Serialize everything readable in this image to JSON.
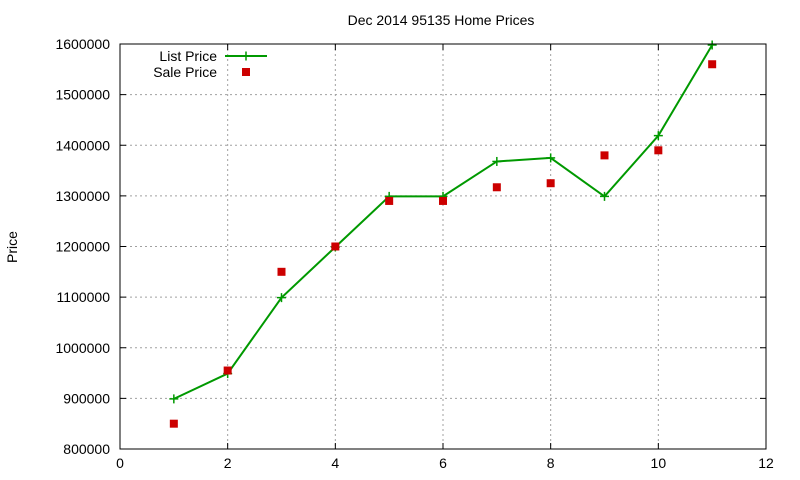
{
  "chart_data": {
    "type": "line",
    "title": "Dec 2014 95135 Home Prices",
    "xlabel": "",
    "ylabel": "Price",
    "xlim": [
      0,
      12
    ],
    "ylim": [
      800000,
      1600000
    ],
    "xticks": [
      0,
      2,
      4,
      6,
      8,
      10,
      12
    ],
    "yticks": [
      800000,
      900000,
      1000000,
      1100000,
      1200000,
      1300000,
      1400000,
      1500000,
      1600000
    ],
    "grid": true,
    "legend_position": "top-left",
    "series": [
      {
        "name": "List Price",
        "style": "line-with-plus-markers",
        "color": "#009900",
        "x": [
          1,
          2,
          3,
          4,
          5,
          6,
          7,
          8,
          9,
          10,
          11
        ],
        "y": [
          899000,
          949000,
          1099000,
          1199000,
          1299000,
          1299000,
          1368000,
          1375000,
          1299000,
          1419000,
          1598000
        ]
      },
      {
        "name": "Sale Price",
        "style": "square-markers",
        "color": "#cc0000",
        "x": [
          1,
          2,
          3,
          4,
          5,
          6,
          7,
          8,
          9,
          10,
          11
        ],
        "y": [
          850000,
          955000,
          1150000,
          1200000,
          1290000,
          1290000,
          1317000,
          1325000,
          1380000,
          1390000,
          1560000
        ]
      }
    ]
  }
}
